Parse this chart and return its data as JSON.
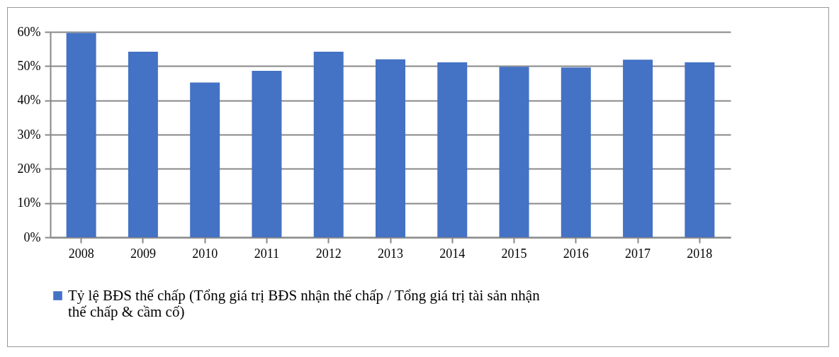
{
  "chart_data": {
    "type": "bar",
    "categories": [
      "2008",
      "2009",
      "2010",
      "2011",
      "2012",
      "2013",
      "2014",
      "2015",
      "2016",
      "2017",
      "2018"
    ],
    "series": [
      {
        "name": "Tỷ lệ BĐS thế chấp (Tổng giá trị BĐS nhận thế chấp / Tổng giá trị tài sản nhận thế chấp & cầm cố)",
        "color": "#4472c4",
        "values": [
          59.7,
          54.2,
          45.2,
          48.6,
          54.2,
          52.0,
          51.1,
          49.8,
          49.6,
          51.9,
          51.1
        ]
      }
    ],
    "ylim": [
      0,
      60
    ],
    "yticks": [
      {
        "value": 0,
        "label": "0%"
      },
      {
        "value": 10,
        "label": "10%"
      },
      {
        "value": 20,
        "label": "20%"
      },
      {
        "value": 30,
        "label": "30%"
      },
      {
        "value": 40,
        "label": "40%"
      },
      {
        "value": 50,
        "label": "50%"
      },
      {
        "value": 60,
        "label": "60%"
      }
    ],
    "grid": "y",
    "legend": "bottom"
  }
}
